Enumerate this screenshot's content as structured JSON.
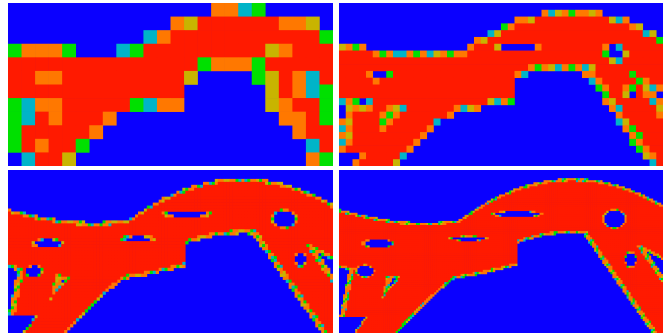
{
  "figure": {
    "description_colors": {
      "background": "#0a00ff",
      "band": "#ff1a00",
      "edge_yellow": "#c8b400",
      "edge_green": "#00e000",
      "edge_cyan": "#00b4c8",
      "edge_orange": "#ff7800"
    },
    "panels": [
      {
        "id": "panel-coarse",
        "resolution": 24
      },
      {
        "id": "panel-medium",
        "resolution": 48
      },
      {
        "id": "panel-fine",
        "resolution": 110
      },
      {
        "id": "panel-finest",
        "resolution": 160
      }
    ]
  }
}
